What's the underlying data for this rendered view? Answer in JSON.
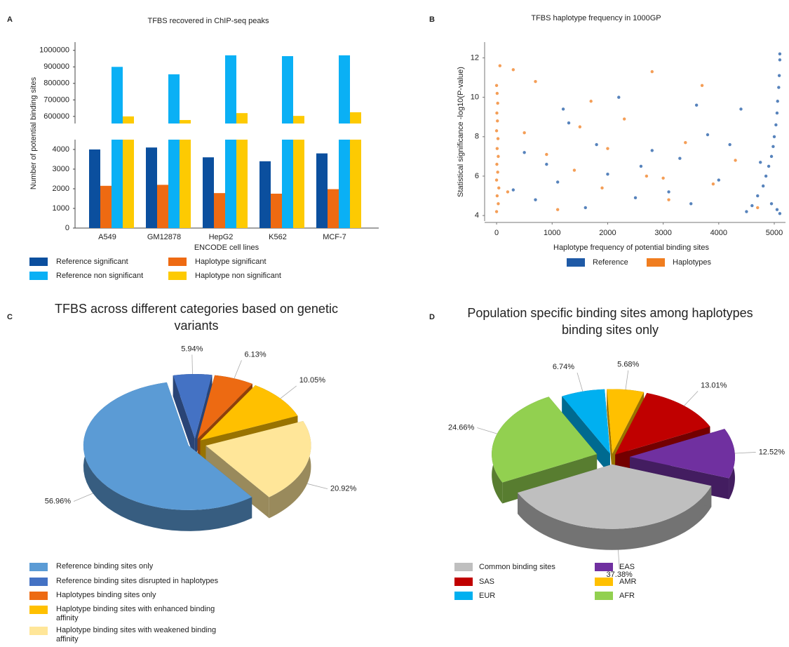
{
  "chart_data": [
    {
      "type": "broken_bar",
      "panel_label": "A",
      "title": "TFBS recovered in ChIP-seq peaks",
      "x_label": "ENCODE cell lines",
      "y_label": "Number of potential binding sites",
      "categories": [
        "A549",
        "GM12878",
        "HepG2",
        "K562",
        "MCF-7"
      ],
      "series": [
        {
          "name": "Reference significant",
          "color": "#0b4f9e",
          "values": [
            4000,
            4100,
            3600,
            3400,
            3800
          ]
        },
        {
          "name": "Haplotype significant",
          "color": "#ee6a12",
          "values": [
            2150,
            2200,
            1780,
            1750,
            1980
          ]
        },
        {
          "name": "Reference non significant",
          "color": "#0ab0f5",
          "values": [
            900000,
            855000,
            970000,
            965000,
            970000
          ]
        },
        {
          "name": "Haplotype non significant",
          "color": "#fdca02",
          "values": [
            600000,
            578000,
            620000,
            603000,
            625000
          ]
        }
      ],
      "ylim": [
        0,
        4500
      ],
      "yticks": [
        0,
        1000,
        2000,
        3000,
        4000
      ],
      "ylim_upper": [
        557000,
        1050000
      ],
      "yticks_upper": [
        600000,
        700000,
        800000,
        900000,
        1000000
      ]
    },
    {
      "type": "scatter",
      "panel_label": "B",
      "title": "TFBS haplotype frequency in 1000GP",
      "x_label": "Haplotype frequency of potential binding sites",
      "y_label": "Statistical significance -log10(P-value)",
      "series": [
        {
          "name": "Haplotypes",
          "color": "#f07d1f",
          "x": [
            0,
            10,
            20,
            5,
            15,
            0,
            25,
            10,
            30,
            5,
            20,
            0,
            40,
            10,
            30,
            0,
            60,
            300,
            700,
            2800,
            3700,
            1700,
            500,
            900,
            1400,
            1900,
            2300,
            2700,
            3100,
            3400,
            3900,
            4300,
            4700,
            200,
            1100,
            2000,
            1500,
            3000
          ],
          "values": [
            10.6,
            10.2,
            9.7,
            9.2,
            8.8,
            8.3,
            7.9,
            7.4,
            7.0,
            6.6,
            6.2,
            5.8,
            5.4,
            5.0,
            4.6,
            4.2,
            11.6,
            11.4,
            10.8,
            11.3,
            10.6,
            9.8,
            8.2,
            7.1,
            6.3,
            5.4,
            8.9,
            6.0,
            4.8,
            7.7,
            5.6,
            6.8,
            4.4,
            5.2,
            4.3,
            7.4,
            8.5,
            5.9
          ]
        },
        {
          "name": "Reference",
          "color": "#1f5aa6",
          "x": [
            5100,
            5100,
            5090,
            5080,
            5060,
            5050,
            5030,
            5000,
            4980,
            4950,
            4900,
            4850,
            4800,
            4700,
            4600,
            4500,
            4400,
            4200,
            4000,
            3800,
            3500,
            3300,
            3100,
            2800,
            2500,
            2200,
            2000,
            1800,
            1600,
            1300,
            1100,
            900,
            700,
            500,
            300,
            1200,
            2600,
            3600,
            5100,
            5050,
            4950,
            4750
          ],
          "values": [
            12.2,
            11.9,
            11.1,
            10.5,
            9.8,
            9.2,
            8.6,
            8.0,
            7.5,
            7.0,
            6.5,
            6.0,
            5.5,
            5.0,
            4.5,
            4.2,
            9.4,
            7.6,
            5.8,
            8.1,
            4.6,
            6.9,
            5.2,
            7.3,
            4.9,
            10.0,
            6.1,
            7.6,
            4.4,
            8.7,
            5.7,
            6.6,
            4.8,
            7.2,
            5.3,
            9.4,
            6.5,
            9.6,
            4.1,
            4.3,
            4.6,
            6.7
          ]
        }
      ],
      "xlim": [
        -165,
        5202
      ],
      "xticks": [
        0,
        1000,
        2000,
        3000,
        4000,
        5000
      ],
      "ylim": [
        3.72,
        12.8
      ],
      "yticks": [
        4,
        6,
        8,
        10,
        12
      ]
    },
    {
      "type": "pie3d",
      "panel_label": "C",
      "title": "TFBS across different categories based on genetic variants",
      "categories": [
        "Reference binding sites only",
        "Reference binding sites disrupted in haplotypes",
        "Haplotypes binding sites only",
        "Haplotype binding sites with enhanced binding affinity",
        "Haplotype binding sites with weakened binding affinity"
      ],
      "values": [
        56.96,
        5.94,
        6.13,
        10.05,
        20.92
      ],
      "value_labels": [
        "56.96%",
        "5.94%",
        "6.13%",
        "10.05%",
        "20.92%"
      ],
      "colors": [
        "#5b9bd5",
        "#4472c4",
        "#ed6a12",
        "#ffc000",
        "#ffe699"
      ]
    },
    {
      "type": "pie3d",
      "panel_label": "D",
      "title": "Population specific binding sites among haplotypes binding sites only",
      "categories": [
        "Common binding sites",
        "AFR",
        "EUR",
        "AMR",
        "SAS",
        "EAS"
      ],
      "values": [
        37.38,
        24.66,
        6.74,
        5.68,
        13.01,
        12.52
      ],
      "value_labels": [
        "37.38%",
        "24.66%",
        "6.74%",
        "5.68%",
        "13.01%",
        "12.52%"
      ],
      "colors": [
        "#bfbfbf",
        "#92d050",
        "#00b0f0",
        "#ffc000",
        "#c00000",
        "#7030a0"
      ]
    }
  ]
}
